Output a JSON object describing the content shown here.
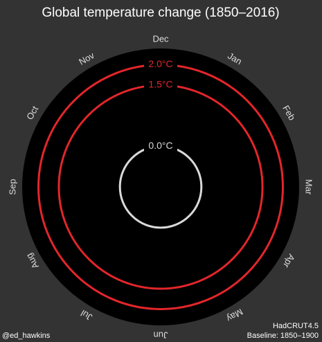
{
  "chart_data": {
    "type": "polar",
    "title": "Global temperature change (1850–2016)",
    "categories": [
      "Jan",
      "Feb",
      "Mar",
      "Apr",
      "May",
      "Jun",
      "Jul",
      "Aug",
      "Sep",
      "Oct",
      "Nov",
      "Dec"
    ],
    "rlim": [
      -1,
      2.4
    ],
    "rticks": [
      {
        "value": 0,
        "label": "0.0°C"
      },
      {
        "value": 1.5,
        "label": "1.5°C"
      },
      {
        "value": 2,
        "label": "2.0°C"
      }
    ],
    "ring_colors": [
      "#d9d9d9",
      "#e3262b",
      "#e3262b"
    ],
    "credit": "@ed_hawkins",
    "source": "HadCRUT4.5",
    "baseline": "Baseline: 1850–1900"
  }
}
